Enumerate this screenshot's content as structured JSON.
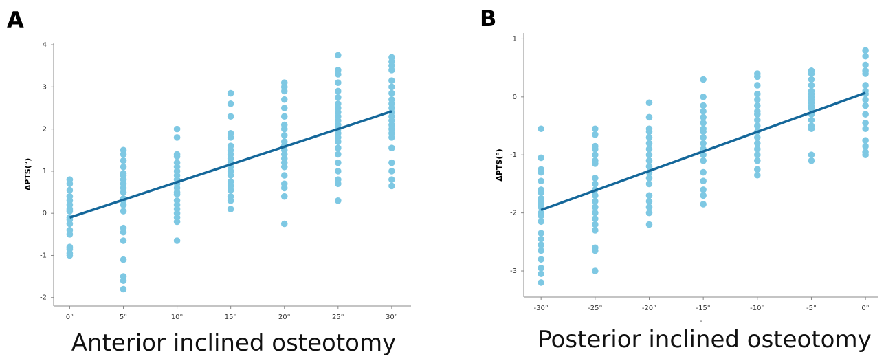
{
  "chart_data": [
    {
      "type": "scatter",
      "panel": "A",
      "caption": "Anterior inclined osteotomy",
      "y_label": "ΔPTS(°)",
      "xlim": [
        -1.5,
        31.8
      ],
      "ylim": [
        -2.2,
        4.05
      ],
      "xticks": [
        {
          "value": 0,
          "label": "0°"
        },
        {
          "value": 5,
          "label": "5°"
        },
        {
          "value": 10,
          "label": "10°"
        },
        {
          "value": 15,
          "label": "15°"
        },
        {
          "value": 20,
          "label": "20°"
        },
        {
          "value": 25,
          "label": "25°"
        },
        {
          "value": 30,
          "label": "30°"
        }
      ],
      "yticks": [
        -2,
        -1,
        0,
        1,
        2,
        3,
        4
      ],
      "color": "#7ec8e3",
      "points": [
        {
          "x": 0,
          "values": [
            0.8,
            0.7,
            0.55,
            0.4,
            0.3,
            0.2,
            0.1,
            0.05,
            -0.1,
            -0.15,
            -0.25,
            -0.4,
            -0.5,
            -0.8,
            -0.85,
            -0.95,
            -1.0
          ]
        },
        {
          "x": 5,
          "values": [
            1.5,
            1.4,
            1.25,
            1.1,
            0.95,
            0.9,
            0.8,
            0.7,
            0.6,
            0.5,
            0.35,
            0.3,
            0.2,
            0.05,
            -0.35,
            -0.45,
            -0.65,
            -1.1,
            -1.5,
            -1.6,
            -1.8
          ]
        },
        {
          "x": 10,
          "values": [
            2.0,
            1.8,
            1.4,
            1.35,
            1.2,
            1.1,
            1.0,
            0.9,
            0.8,
            0.7,
            0.6,
            0.5,
            0.45,
            0.3,
            0.2,
            0.1,
            0,
            -0.1,
            -0.2,
            -0.65
          ]
        },
        {
          "x": 15,
          "values": [
            2.85,
            2.6,
            2.3,
            1.9,
            1.8,
            1.6,
            1.5,
            1.4,
            1.3,
            1.2,
            1.1,
            1.0,
            0.9,
            0.75,
            0.65,
            0.55,
            0.4,
            0.3,
            0.1
          ]
        },
        {
          "x": 20,
          "values": [
            3.1,
            3.0,
            2.9,
            2.7,
            2.5,
            2.3,
            2.1,
            2.0,
            1.85,
            1.7,
            1.6,
            1.5,
            1.4,
            1.3,
            1.2,
            1.1,
            0.9,
            0.7,
            0.6,
            0.4,
            -0.25
          ]
        },
        {
          "x": 25,
          "values": [
            3.75,
            3.4,
            3.3,
            3.1,
            2.9,
            2.75,
            2.6,
            2.5,
            2.4,
            2.3,
            2.2,
            2.1,
            2.0,
            1.9,
            1.8,
            1.7,
            1.55,
            1.4,
            1.2,
            1.0,
            0.8,
            0.7,
            0.3
          ]
        },
        {
          "x": 30,
          "values": [
            3.7,
            3.6,
            3.5,
            3.4,
            3.15,
            3.0,
            2.85,
            2.7,
            2.6,
            2.5,
            2.4,
            2.3,
            2.2,
            2.1,
            2.0,
            1.9,
            1.8,
            1.55,
            1.2,
            1.0,
            0.8,
            0.65
          ]
        }
      ],
      "fit": {
        "x": [
          0,
          30
        ],
        "values": [
          -0.1,
          2.42
        ],
        "color": "#14679a"
      }
    },
    {
      "type": "scatter",
      "panel": "B",
      "caption": "Posterior inclined osteotomy",
      "y_label": "ΔPTS(°)",
      "x_label": "-",
      "xlim": [
        -31.6,
        1.2
      ],
      "ylim": [
        -3.45,
        1.1
      ],
      "xticks": [
        {
          "value": -30,
          "label": "-30°"
        },
        {
          "value": -25,
          "label": "-25°"
        },
        {
          "value": -20,
          "label": "-20°"
        },
        {
          "value": -15,
          "label": "-15°"
        },
        {
          "value": -10,
          "label": "-10°"
        },
        {
          "value": -5,
          "label": "-5°"
        },
        {
          "value": 0,
          "label": "0°"
        }
      ],
      "yticks": [
        -3,
        -2,
        -1,
        0,
        1
      ],
      "color": "#7ec8e3",
      "points": [
        {
          "x": -30,
          "values": [
            -0.55,
            -1.05,
            -1.25,
            -1.3,
            -1.45,
            -1.6,
            -1.65,
            -1.75,
            -1.8,
            -1.85,
            -1.9,
            -2.0,
            -2.05,
            -2.15,
            -2.35,
            -2.45,
            -2.55,
            -2.65,
            -2.8,
            -2.95,
            -3.05,
            -3.2
          ]
        },
        {
          "x": -25,
          "values": [
            -0.55,
            -0.65,
            -0.85,
            -0.9,
            -1.0,
            -1.1,
            -1.15,
            -1.4,
            -1.5,
            -1.6,
            -1.7,
            -1.8,
            -1.9,
            -2.0,
            -2.1,
            -2.2,
            -2.3,
            -2.6,
            -2.65,
            -3.0
          ]
        },
        {
          "x": -20,
          "values": [
            -0.1,
            -0.35,
            -0.55,
            -0.6,
            -0.7,
            -0.8,
            -0.9,
            -1.0,
            -1.1,
            -1.2,
            -1.3,
            -1.4,
            -1.5,
            -1.7,
            -1.8,
            -1.9,
            -2.0,
            -2.2
          ]
        },
        {
          "x": -15,
          "values": [
            0.3,
            0.0,
            -0.15,
            -0.25,
            -0.35,
            -0.45,
            -0.55,
            -0.6,
            -0.7,
            -0.8,
            -0.9,
            -1.0,
            -1.1,
            -1.3,
            -1.45,
            -1.6,
            -1.7,
            -1.85
          ]
        },
        {
          "x": -10,
          "values": [
            0.4,
            0.35,
            0.2,
            0.05,
            -0.05,
            -0.15,
            -0.25,
            -0.3,
            -0.4,
            -0.5,
            -0.6,
            -0.7,
            -0.8,
            -0.9,
            -1.0,
            -1.1,
            -1.25,
            -1.35
          ]
        },
        {
          "x": -5,
          "values": [
            0.45,
            0.4,
            0.3,
            0.2,
            0.1,
            0.05,
            0.0,
            -0.05,
            -0.1,
            -0.15,
            -0.2,
            -0.3,
            -0.4,
            -0.5,
            -0.55,
            -1.0,
            -1.1
          ]
        },
        {
          "x": 0,
          "values": [
            0.8,
            0.7,
            0.55,
            0.45,
            0.4,
            0.2,
            0.1,
            0.05,
            -0.05,
            -0.15,
            -0.3,
            -0.45,
            -0.55,
            -0.75,
            -0.85,
            -0.95,
            -1.0
          ]
        }
      ],
      "fit": {
        "x": [
          -30,
          0
        ],
        "values": [
          -1.95,
          0.07
        ],
        "color": "#14679a"
      }
    }
  ]
}
